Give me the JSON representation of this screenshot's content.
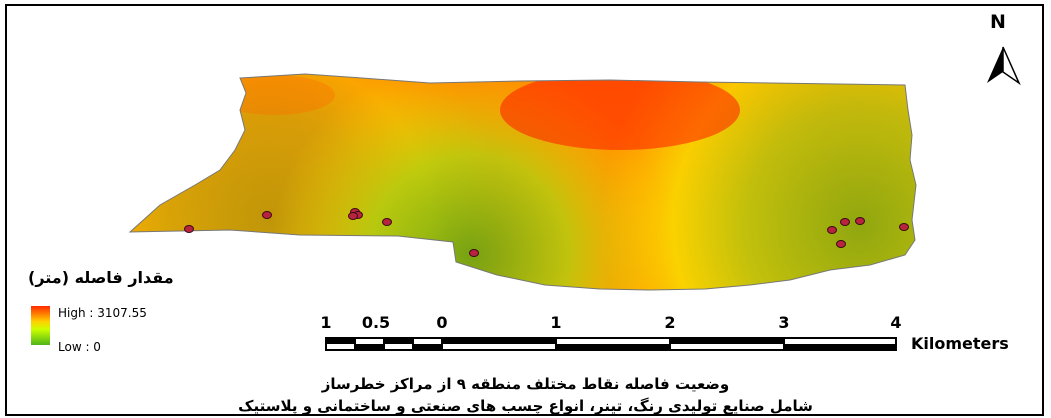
{
  "legend": {
    "title": "مقدار فاصله (متر)",
    "high_label": "High : 3107.55",
    "low_label": "Low : 0",
    "high_value": 3107.55,
    "low_value": 0,
    "ramp_colors": [
      "#ff2a00",
      "#ffd100",
      "#ccff00",
      "#4fb41a"
    ]
  },
  "scale_bar": {
    "ticks": [
      "1",
      "0.5",
      "0",
      "1",
      "2",
      "3",
      "4"
    ],
    "unit": "Kilometers"
  },
  "north_arrow": {
    "letter": "N"
  },
  "caption": {
    "line1": "وضعیت فاصله نقاط مختلف منطقه ۹ از مراکز خطرساز",
    "line2": "شامل صنایع تولیدی رنگ، تینر، انواع چسب های صنعتی و ساختمانی و پلاستیک"
  },
  "colors": {
    "point_fill": "#b8243f",
    "point_stroke": "#3a0a14"
  },
  "hazard_point_count": 12
}
